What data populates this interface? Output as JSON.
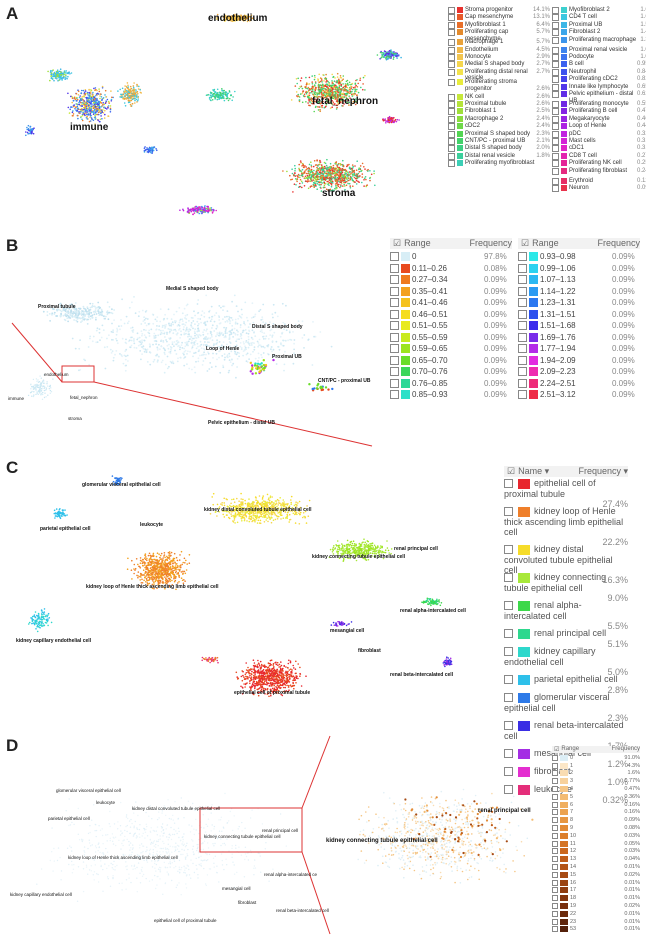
{
  "panels": {
    "A": {
      "label": "A",
      "cluster_labels": {
        "endothelium": "endothelium",
        "immune": "immune",
        "fetal_nephron": "fetal_nephron",
        "stroma": "stroma"
      },
      "legend_col1": [
        {
          "name": "Stroma progenitor",
          "pct": "14.1%",
          "color": "#e8322f"
        },
        {
          "name": "Cap mesenchyme",
          "pct": "13.1%",
          "color": "#e85a2a"
        },
        {
          "name": "Myofibroblast 1",
          "pct": "6.4%",
          "color": "#e86f2a"
        },
        {
          "name": "Proliferating cap mesenchyme",
          "pct": "5.7%",
          "color": "#e38a2c"
        },
        {
          "name": "Macrophage 1",
          "pct": "5.7%",
          "color": "#e9a23a"
        },
        {
          "name": "Endothelium",
          "pct": "4.5%",
          "color": "#f0b84a"
        },
        {
          "name": "Monocyte",
          "pct": "2.9%",
          "color": "#f2c54f"
        },
        {
          "name": "Medial S shaped body",
          "pct": "2.7%",
          "color": "#f5d64e"
        },
        {
          "name": "Proliferating distal renal vesicle",
          "pct": "2.7%",
          "color": "#f3e24b"
        },
        {
          "name": "Proliferating stroma",
          "pct": "",
          "color": "#e9ec3c"
        },
        {
          "name": "progenitor",
          "pct": "2.6%",
          "color": ""
        },
        {
          "name": "NK cell",
          "pct": "2.6%",
          "color": "#c6e83a"
        },
        {
          "name": "Proximal tubule",
          "pct": "2.6%",
          "color": "#b5e33a"
        },
        {
          "name": "Fibroblast 1",
          "pct": "2.5%",
          "color": "#9fdf3a"
        },
        {
          "name": "Macrophage 2",
          "pct": "2.4%",
          "color": "#8bdc3f"
        },
        {
          "name": "cDC2",
          "pct": "2.4%",
          "color": "#6fd84a"
        },
        {
          "name": "Proximal S shaped body",
          "pct": "2.3%",
          "color": "#52d452"
        },
        {
          "name": "CNT/PC - proximal UB",
          "pct": "2.1%",
          "color": "#43d16a"
        },
        {
          "name": "Distal S shaped body",
          "pct": "2.0%",
          "color": "#3dd082"
        },
        {
          "name": "Distal renal vesicle",
          "pct": "1.8%",
          "color": "#3ccf9c"
        },
        {
          "name": "Proliferating myofibroblast",
          "pct": "",
          "color": "#3ccfb6"
        }
      ],
      "legend_col2": [
        {
          "name": "Myofibroblast 2",
          "pct": "1.6%",
          "color": "#3dd0cf"
        },
        {
          "name": "CD4 T cell",
          "pct": "1.6%",
          "color": "#3cc7e0"
        },
        {
          "name": "Proximal UB",
          "pct": "1.5%",
          "color": "#3cb6e6"
        },
        {
          "name": "Fibroblast 2",
          "pct": "1.4%",
          "color": "#3ca6ea"
        },
        {
          "name": "Proliferating macrophage",
          "pct": "1.3%",
          "color": "#3c95ec"
        },
        {
          "name": "Proximal renal vesicle",
          "pct": "1.0%",
          "color": "#3c84ee"
        },
        {
          "name": "Podocyte",
          "pct": "1.0%",
          "color": "#3c74ef"
        },
        {
          "name": "B cell",
          "pct": "0.95%",
          "color": "#3c62ef"
        },
        {
          "name": "Neutrophil",
          "pct": "0.84%",
          "color": "#3d52ee"
        },
        {
          "name": "Proliferating cDC2",
          "pct": "0.82%",
          "color": "#4542ee"
        },
        {
          "name": "Innate like lymphocyte",
          "pct": "0.65%",
          "color": "#5236ea"
        },
        {
          "name": "Pelvic epithelium - distal UB",
          "pct": "0.62%",
          "color": "#612ee7"
        },
        {
          "name": "Proliferating monocyte",
          "pct": "0.55%",
          "color": "#7028e4"
        },
        {
          "name": "Proliferating B cell",
          "pct": "0.47%",
          "color": "#8424e3"
        },
        {
          "name": "Megakaryocyte",
          "pct": "0.46%",
          "color": "#9824e3"
        },
        {
          "name": "Loop of Henle",
          "pct": "0.44%",
          "color": "#ad24e3"
        },
        {
          "name": "pDC",
          "pct": "0.32%",
          "color": "#c124e0"
        },
        {
          "name": "Mast cells",
          "pct": "0.31%",
          "color": "#d424d6"
        },
        {
          "name": "cDC1",
          "pct": "0.31%",
          "color": "#e024c8"
        },
        {
          "name": "CD8 T cell",
          "pct": "0.27%",
          "color": "#e324b0"
        },
        {
          "name": "Proliferating NK cell",
          "pct": "0.25%",
          "color": "#e42698"
        },
        {
          "name": "Proliferating fibroblast",
          "pct": "0.24%",
          "color": "#e52a80"
        },
        {
          "name": "Erythroid",
          "pct": "0.12%",
          "color": "#e62e66"
        },
        {
          "name": "Neuron",
          "pct": "0.09%",
          "color": "#e8324c"
        }
      ]
    },
    "B": {
      "label": "B",
      "cluster_labels": {
        "proximal_tubule": "Proximal tubule",
        "medial_s": "Medial S shaped body",
        "distal_s": "Distal S shaped body",
        "loop": "Loop of Henle",
        "proximal_ub": "Proximal UB",
        "cnt": "CNT/PC - proximal UB",
        "pelvic": "Pelvic epithelium - distal UB",
        "mini_endothelium": "endothelium",
        "mini_immune": "immune",
        "mini_fetal": "fetal_nephron",
        "mini_stroma": "stroma"
      },
      "header": {
        "range": "Range",
        "frequency": "Frequency"
      },
      "col1": [
        {
          "range": "0",
          "pct": "97.8%",
          "color": "#d8eef6"
        },
        {
          "range": "0.11–0.26",
          "pct": "0.08%",
          "color": "#e84a1e"
        },
        {
          "range": "0.27–0.34",
          "pct": "0.09%",
          "color": "#ef7a1e"
        },
        {
          "range": "0.35–0.41",
          "pct": "0.09%",
          "color": "#f3a11e"
        },
        {
          "range": "0.41–0.46",
          "pct": "0.09%",
          "color": "#f5c21e"
        },
        {
          "range": "0.46–0.51",
          "pct": "0.09%",
          "color": "#f5dd1e"
        },
        {
          "range": "0.51–0.55",
          "pct": "0.09%",
          "color": "#e8ea1e"
        },
        {
          "range": "0.55–0.59",
          "pct": "0.09%",
          "color": "#c8ea1e"
        },
        {
          "range": "0.59–0.65",
          "pct": "0.09%",
          "color": "#9ce41e"
        },
        {
          "range": "0.65–0.70",
          "pct": "0.09%",
          "color": "#6add2a"
        },
        {
          "range": "0.70–0.76",
          "pct": "0.09%",
          "color": "#3cd65a"
        },
        {
          "range": "0.76–0.85",
          "pct": "0.09%",
          "color": "#2cd896"
        },
        {
          "range": "0.85–0.93",
          "pct": "0.09%",
          "color": "#2ce0c8"
        }
      ],
      "col2": [
        {
          "range": "0.93–0.98",
          "pct": "0.09%",
          "color": "#2ce8e8"
        },
        {
          "range": "0.99–1.06",
          "pct": "0.09%",
          "color": "#2cd2f0"
        },
        {
          "range": "1.07–1.13",
          "pct": "0.09%",
          "color": "#2cb8f2"
        },
        {
          "range": "1.14–1.22",
          "pct": "0.09%",
          "color": "#2c9af2"
        },
        {
          "range": "1.23–1.31",
          "pct": "0.09%",
          "color": "#2c78f0"
        },
        {
          "range": "1.31–1.51",
          "pct": "0.09%",
          "color": "#2c50ee"
        },
        {
          "range": "1.51–1.68",
          "pct": "0.09%",
          "color": "#3c2cec"
        },
        {
          "range": "1.69–1.76",
          "pct": "0.09%",
          "color": "#7a2cea"
        },
        {
          "range": "1.77–1.94",
          "pct": "0.09%",
          "color": "#b42ce8"
        },
        {
          "range": "1.94–2.09",
          "pct": "0.09%",
          "color": "#e22ce0"
        },
        {
          "range": "2.09–2.23",
          "pct": "0.09%",
          "color": "#ee2cb0"
        },
        {
          "range": "2.24–2.51",
          "pct": "0.09%",
          "color": "#ee2c7a"
        },
        {
          "range": "2.51–3.12",
          "pct": "0.09%",
          "color": "#ee2c48"
        }
      ]
    },
    "C": {
      "label": "C",
      "cluster_labels": {
        "glomerular": "glomerular visceral epithelial cell",
        "parietal": "parietal epithelial cell",
        "leukocyte": "leukocyte",
        "distal": "kidney distal convoluted tubule epithelial cell",
        "renal_principal": "renal principal cell",
        "connecting": "kidney connecting tubule epithelial cell",
        "loop": "kidney loop of Henle thick ascending limb epithelial cell",
        "alpha": "renal alpha-intercalated cell",
        "capillary": "kidney capillary endothelial cell",
        "mesangial": "mesangial cell",
        "fibroblast": "fibroblast",
        "beta": "renal beta-intercalated cell",
        "proximal": "epithelial cell of proximal tubule"
      },
      "header": {
        "name": "Name ▾",
        "frequency": "Frequency ▾"
      },
      "legend": [
        {
          "name": "epithelial cell of proximal tubule",
          "pct": "27.4%",
          "color": "#e8262e"
        },
        {
          "name": "kidney loop of Henle thick ascending limb epithelial cell",
          "pct": "22.2%",
          "color": "#ef7f2a"
        },
        {
          "name": "kidney distal convoluted tubule epithelial cell",
          "pct": "16.3%",
          "color": "#f6dc2a"
        },
        {
          "name": "kidney connecting tubule epithelial cell",
          "pct": "9.0%",
          "color": "#a8e83a"
        },
        {
          "name": "renal alpha-intercalated cell",
          "pct": "5.5%",
          "color": "#3cd84a"
        },
        {
          "name": "renal principal cell",
          "pct": "5.1%",
          "color": "#2ed88e"
        },
        {
          "name": "kidney capillary endothelial cell",
          "pct": "5.0%",
          "color": "#2ed8cc"
        },
        {
          "name": "parietal epithelial cell",
          "pct": "2.8%",
          "color": "#2ec0ea"
        },
        {
          "name": "glomerular visceral epithelial cell",
          "pct": "2.3%",
          "color": "#2e7ae8"
        },
        {
          "name": "renal beta-intercalated cell",
          "pct": "1.7%",
          "color": "#3a2ee4"
        },
        {
          "name": "mesangial cell",
          "pct": "1.2%",
          "color": "#a42ee4"
        },
        {
          "name": "fibroblast",
          "pct": "1.0%",
          "color": "#e42ed0"
        },
        {
          "name": "leukocyte",
          "pct": "0.32%",
          "color": "#e42e7a"
        }
      ]
    },
    "D": {
      "label": "D",
      "cluster_labels": {
        "glomerular": "glomerular visceral epithelial cell",
        "leukocyte": "leukocyte",
        "parietal": "parietal epithelial cell",
        "distal": "kidney distal convoluted tubule epithelial cell",
        "principal": "renal principal cell",
        "connecting": "kidney connecting tubule epithelial cell",
        "loop": "kidney loop of Henle thick ascending limb epithelial cell",
        "alpha": "renal alpha-intercalated ce",
        "mesangial": "mesangial cell",
        "capillary": "kidney capillary endothelial cell",
        "fibroblast": "fibroblast",
        "beta": "renal beta-intercalated cell",
        "proximal": "epithelial cell of proximal tubule",
        "zoom_connecting": "kidney connecting tubule epithelial cell",
        "zoom_principal": "renal principal cell"
      },
      "header": {
        "range": "Range",
        "frequency": "Frequency"
      },
      "legend": [
        {
          "range": "0",
          "pct": "91.0%",
          "color": "#dceef6"
        },
        {
          "range": "1",
          "pct": "4.3%",
          "color": "#fbe7c8"
        },
        {
          "range": "2",
          "pct": "1.6%",
          "color": "#f9dcb2"
        },
        {
          "range": "3",
          "pct": "0.77%",
          "color": "#f7d19c"
        },
        {
          "range": "4",
          "pct": "0.47%",
          "color": "#f5c686"
        },
        {
          "range": "5",
          "pct": "0.36%",
          "color": "#f3bb72"
        },
        {
          "range": "6",
          "pct": "0.16%",
          "color": "#f0af60"
        },
        {
          "range": "7",
          "pct": "0.16%",
          "color": "#eca350"
        },
        {
          "range": "8",
          "pct": "0.09%",
          "color": "#e79742"
        },
        {
          "range": "9",
          "pct": "0.08%",
          "color": "#e28b36"
        },
        {
          "range": "10",
          "pct": "0.03%",
          "color": "#dc7f2c"
        },
        {
          "range": "11",
          "pct": "0.05%",
          "color": "#d47324"
        },
        {
          "range": "12",
          "pct": "0.03%",
          "color": "#cb681e"
        },
        {
          "range": "13",
          "pct": "0.04%",
          "color": "#c05e1a"
        },
        {
          "range": "14",
          "pct": "0.01%",
          "color": "#b45416"
        },
        {
          "range": "15",
          "pct": "0.02%",
          "color": "#a74b14"
        },
        {
          "range": "16",
          "pct": "0.01%",
          "color": "#9b4312"
        },
        {
          "range": "17",
          "pct": "0.01%",
          "color": "#8f3c10"
        },
        {
          "range": "18",
          "pct": "0.01%",
          "color": "#83350e"
        },
        {
          "range": "19",
          "pct": "0.02%",
          "color": "#782f0d"
        },
        {
          "range": "22",
          "pct": "0.01%",
          "color": "#6c2a0c"
        },
        {
          "range": "23",
          "pct": "0.01%",
          "color": "#60250b"
        },
        {
          "range": "53",
          "pct": "0.01%",
          "color": "#54200a"
        }
      ]
    }
  }
}
